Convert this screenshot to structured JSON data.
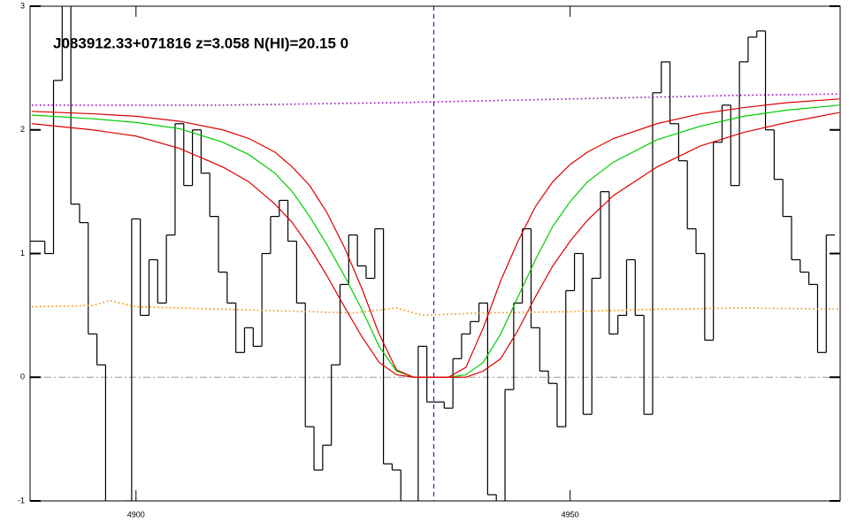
{
  "chart_data": {
    "type": "line",
    "title": "J083912.33+071816 z=3.058 N(HI)=20.15 0",
    "xlim": [
      4887.8,
      4981.1
    ],
    "ylim": [
      -1,
      3
    ],
    "xticks": [
      4900,
      4950
    ],
    "yticks": [
      -1,
      0,
      1,
      2,
      3
    ],
    "hline": 0,
    "hline_color": "#999999",
    "vline": 4934.3,
    "vline_color": "#0000cc",
    "series": [
      {
        "color": "#000000",
        "style": "step",
        "x": [
          4888,
          4889,
          4890,
          4891,
          4892,
          4893,
          4894,
          4895,
          4896,
          4897,
          4898,
          4899,
          4900,
          4901,
          4902,
          4903,
          4904,
          4905,
          4906,
          4907,
          4908,
          4909,
          4910,
          4911,
          4912,
          4913,
          4914,
          4915,
          4916,
          4917,
          4918,
          4919,
          4920,
          4921,
          4922,
          4923,
          4924,
          4925,
          4926,
          4927,
          4928,
          4929,
          4930,
          4931,
          4932,
          4933,
          4934,
          4935,
          4936,
          4937,
          4938,
          4939,
          4940,
          4941,
          4942,
          4943,
          4944,
          4945,
          4946,
          4947,
          4948,
          4949,
          4950,
          4951,
          4952,
          4953,
          4954,
          4955,
          4956,
          4957,
          4958,
          4959,
          4960,
          4961,
          4962,
          4963,
          4964,
          4965,
          4966,
          4967,
          4968,
          4969,
          4970,
          4971,
          4972,
          4973,
          4974,
          4975,
          4976,
          4977,
          4978,
          4979,
          4980
        ],
        "values": [
          1.1,
          1.1,
          1.0,
          2.4,
          3.2,
          1.4,
          1.25,
          0.35,
          0.1,
          -1.1,
          -1.05,
          -1.0,
          1.28,
          0.5,
          0.95,
          0.6,
          1.15,
          2.05,
          1.55,
          2.0,
          1.65,
          1.3,
          0.85,
          0.6,
          0.2,
          0.4,
          0.25,
          1.0,
          1.3,
          1.43,
          1.1,
          0.6,
          -0.4,
          -0.75,
          -0.55,
          0.1,
          0.75,
          1.15,
          0.9,
          0.8,
          1.2,
          -0.7,
          -0.75,
          -1.1,
          -1.05,
          0.25,
          -0.2,
          -0.2,
          -0.25,
          0.15,
          0.35,
          0.45,
          0.6,
          -0.95,
          -1.05,
          -0.1,
          0.6,
          1.2,
          0.4,
          0.05,
          -0.05,
          -0.4,
          0.7,
          1.0,
          -0.3,
          0.8,
          1.5,
          0.35,
          0.5,
          0.95,
          0.5,
          -0.3,
          2.3,
          2.55,
          2.05,
          1.75,
          1.2,
          1.0,
          0.3,
          1.9,
          2.2,
          1.55,
          2.55,
          2.75,
          2.8,
          2.0,
          1.6,
          1.3,
          0.95,
          0.85,
          0.75,
          0.2,
          1.15
        ]
      },
      {
        "color": "#00cc00",
        "style": "solid",
        "x": [
          4888,
          4895,
          4900,
          4905,
          4910,
          4913,
          4916,
          4918,
          4920,
          4922,
          4924,
          4926,
          4928,
          4930,
          4932,
          4936,
          4938,
          4940,
          4942,
          4944,
          4946,
          4948,
          4950,
          4952,
          4955,
          4960,
          4965,
          4970,
          4975,
          4981
        ],
        "values": [
          2.12,
          2.09,
          2.06,
          2.01,
          1.9,
          1.8,
          1.65,
          1.5,
          1.3,
          1.07,
          0.82,
          0.55,
          0.25,
          0.05,
          0,
          0,
          0.02,
          0.12,
          0.35,
          0.65,
          0.95,
          1.22,
          1.42,
          1.58,
          1.74,
          1.92,
          2.03,
          2.11,
          2.16,
          2.2
        ]
      },
      {
        "color": "#dd0000",
        "style": "solid",
        "x": [
          4888,
          4895,
          4900,
          4905,
          4910,
          4913,
          4916,
          4918,
          4920,
          4922,
          4924,
          4926,
          4928,
          4930,
          4932,
          4936,
          4938,
          4940,
          4942,
          4944,
          4946,
          4948,
          4950,
          4952,
          4955,
          4960,
          4965,
          4970,
          4975,
          4981
        ],
        "values": [
          2.15,
          2.13,
          2.11,
          2.07,
          2.0,
          1.93,
          1.82,
          1.7,
          1.55,
          1.33,
          1.05,
          0.72,
          0.35,
          0.06,
          0,
          0,
          0.08,
          0.4,
          0.78,
          1.1,
          1.38,
          1.58,
          1.72,
          1.82,
          1.93,
          2.05,
          2.13,
          2.18,
          2.22,
          2.25
        ]
      },
      {
        "color": "#dd0000",
        "style": "solid",
        "x": [
          4888,
          4895,
          4900,
          4905,
          4910,
          4913,
          4916,
          4918,
          4920,
          4922,
          4924,
          4926,
          4928,
          4930,
          4932,
          4936,
          4938,
          4940,
          4942,
          4944,
          4946,
          4948,
          4950,
          4952,
          4955,
          4960,
          4965,
          4970,
          4975,
          4981
        ],
        "values": [
          2.05,
          2.0,
          1.95,
          1.85,
          1.7,
          1.58,
          1.4,
          1.25,
          1.05,
          0.82,
          0.57,
          0.33,
          0.12,
          0.02,
          0,
          0,
          0.0,
          0.05,
          0.15,
          0.38,
          0.65,
          0.9,
          1.1,
          1.27,
          1.47,
          1.7,
          1.87,
          1.98,
          2.06,
          2.14
        ]
      },
      {
        "color": "#9900cc",
        "style": "dotted",
        "x": [
          4888,
          4910,
          4930,
          4950,
          4970,
          4981
        ],
        "values": [
          2.2,
          2.2,
          2.22,
          2.25,
          2.28,
          2.29
        ]
      },
      {
        "color": "#ff8800",
        "style": "dotted",
        "x": [
          4888,
          4895,
          4897,
          4900,
          4910,
          4920,
          4925,
          4930,
          4933,
          4940,
          4950,
          4960,
          4970,
          4981
        ],
        "values": [
          0.57,
          0.58,
          0.62,
          0.57,
          0.55,
          0.53,
          0.52,
          0.56,
          0.5,
          0.52,
          0.53,
          0.55,
          0.56,
          0.55
        ]
      }
    ]
  }
}
